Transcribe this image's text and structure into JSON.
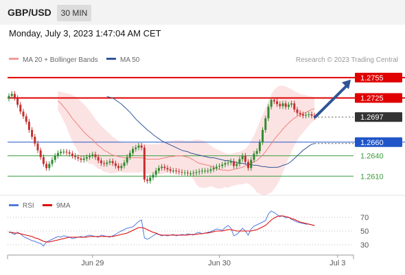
{
  "header": {
    "symbol": "GBP/USD",
    "timeframe": "30 MIN",
    "datetime": "Monday, July 3, 2023 1:47:04 AM CET"
  },
  "colors": {
    "bollinger": "#f07f7f",
    "ma50": "#2f5596",
    "resistance": "#e00000",
    "support_blue": "#1f55c8",
    "support_green": "#3a9a3a",
    "candle_up": "#2f8a2f",
    "candle_down": "#c53030",
    "rsi": "#4f7be0",
    "rsi_ma": "#e00000"
  },
  "chart_data": [
    {
      "type": "line",
      "title": "",
      "legend": [
        {
          "name": "MA 20 + Bollinger Bands"
        },
        {
          "name": "MA 50"
        }
      ],
      "copyright": "Research © 2023 Trading Central",
      "ylim": [
        1.2586,
        1.2772
      ],
      "x_ticks": [
        {
          "label": "Jun 29",
          "index": 29
        },
        {
          "label": "Jun 30",
          "index": 73
        },
        {
          "label": "Jul 3",
          "index": 114
        }
      ],
      "levels": [
        {
          "value": 1.2755,
          "label": "1.2755",
          "style": "resistance"
        },
        {
          "value": 1.2725,
          "label": "1.2725",
          "style": "resistance"
        },
        {
          "value": 1.2697,
          "label": "1.2697",
          "style": "current"
        },
        {
          "value": 1.266,
          "label": "1.2660",
          "style": "support_blue"
        },
        {
          "value": 1.264,
          "label": "1.2640",
          "style": "support_green"
        },
        {
          "value": 1.261,
          "label": "1.2610",
          "style": "support_green"
        }
      ],
      "close": [
        1.2728,
        1.2731,
        1.2725,
        1.2715,
        1.2705,
        1.2698,
        1.269,
        1.2678,
        1.2668,
        1.2658,
        1.2648,
        1.2638,
        1.2628,
        1.2622,
        1.2628,
        1.2634,
        1.264,
        1.2644,
        1.2646,
        1.2646,
        1.2645,
        1.2643,
        1.264,
        1.2638,
        1.2636,
        1.2634,
        1.2636,
        1.2638,
        1.264,
        1.2642,
        1.2638,
        1.2633,
        1.2629,
        1.2628,
        1.263,
        1.2632,
        1.2629,
        1.2625,
        1.2622,
        1.2625,
        1.263,
        1.2638,
        1.2644,
        1.265,
        1.2652,
        1.2655,
        1.2652,
        1.2605,
        1.2603,
        1.2608,
        1.2612,
        1.2618,
        1.2622,
        1.2624,
        1.2622,
        1.262,
        1.2618,
        1.2618,
        1.2617,
        1.2616,
        1.2615,
        1.2615,
        1.2614,
        1.2614,
        1.2615,
        1.2616,
        1.2617,
        1.2618,
        1.2618,
        1.2618,
        1.262,
        1.2622,
        1.2624,
        1.2625,
        1.2627,
        1.2629,
        1.263,
        1.2632,
        1.2625,
        1.2628,
        1.2635,
        1.264,
        1.2631,
        1.2622,
        1.2634,
        1.2643,
        1.2647,
        1.266,
        1.2678,
        1.2695,
        1.2712,
        1.2722,
        1.272,
        1.2716,
        1.2713,
        1.2717,
        1.2712,
        1.2715,
        1.2717,
        1.2708,
        1.2703,
        1.2701,
        1.2699,
        1.27,
        1.2701,
        1.2699,
        1.2697
      ],
      "ma20": [
        1.2721,
        1.2717,
        1.2712,
        1.2707,
        1.2701,
        1.2695,
        1.269,
        1.2685,
        1.268,
        1.2675,
        1.2671,
        1.2667,
        1.2664,
        1.2659,
        1.2655,
        1.2652,
        1.2648,
        1.2646,
        1.2643,
        1.2641,
        1.264,
        1.2639,
        1.2638,
        1.2637,
        1.2637,
        1.2637,
        1.2637,
        1.2637,
        1.2637,
        1.2637,
        1.2636,
        1.2635,
        1.2635,
        1.2635,
        1.2635,
        1.2635,
        1.2636,
        1.2637,
        1.2638,
        1.2639,
        1.2639,
        1.264,
        1.264,
        1.264,
        1.2639,
        1.2638,
        1.2636,
        1.2634,
        1.2631,
        1.2629,
        1.2628,
        1.2627,
        1.2626,
        1.2625,
        1.2623,
        1.2621,
        1.262,
        1.2619,
        1.2619,
        1.2618,
        1.2619,
        1.262,
        1.2621,
        1.2622,
        1.2623,
        1.2625,
        1.2627,
        1.2629,
        1.2631,
        1.2633,
        1.2637,
        1.2641,
        1.2646,
        1.2652,
        1.2658,
        1.2664,
        1.2669,
        1.2674,
        1.2679,
        1.2684,
        1.2688,
        1.2692,
        1.2695,
        1.2698,
        1.27,
        1.2702,
        1.2704,
        1.2706,
        1.2708,
        1.2709
      ],
      "bb_upper": [
        1.2735,
        1.2734,
        1.2733,
        1.2732,
        1.2731,
        1.2729,
        1.2727,
        1.2724,
        1.272,
        1.2716,
        1.2711,
        1.2706,
        1.27,
        1.2694,
        1.2689,
        1.2684,
        1.268,
        1.2676,
        1.2672,
        1.2668,
        1.2665,
        1.2662,
        1.266,
        1.2659,
        1.2659,
        1.2659,
        1.2659,
        1.2659,
        1.2659,
        1.2658,
        1.2658,
        1.2657,
        1.2657,
        1.2657,
        1.2657,
        1.2657,
        1.2659,
        1.266,
        1.2661,
        1.2662,
        1.2662,
        1.2663,
        1.2663,
        1.2663,
        1.2662,
        1.2662,
        1.2662,
        1.2663,
        1.2664,
        1.2664,
        1.2663,
        1.2661,
        1.2658,
        1.2655,
        1.2652,
        1.265,
        1.2648,
        1.2646,
        1.2644,
        1.2643,
        1.2643,
        1.2644,
        1.2645,
        1.2646,
        1.2648,
        1.265,
        1.2655,
        1.2662,
        1.267,
        1.268,
        1.269,
        1.27,
        1.271,
        1.272,
        1.273,
        1.2737,
        1.2741,
        1.2743,
        1.2743,
        1.2742,
        1.274,
        1.2738,
        1.2735,
        1.2733,
        1.2731,
        1.273,
        1.2729,
        1.2728,
        1.2727,
        1.2726
      ],
      "bb_lower": [
        1.2707,
        1.27,
        1.2691,
        1.2682,
        1.2671,
        1.2661,
        1.2653,
        1.2646,
        1.264,
        1.2634,
        1.2631,
        1.2628,
        1.2628,
        1.2624,
        1.2621,
        1.262,
        1.2616,
        1.2616,
        1.2614,
        1.2614,
        1.2615,
        1.2616,
        1.2616,
        1.2615,
        1.2615,
        1.2615,
        1.2615,
        1.2615,
        1.2615,
        1.2616,
        1.2614,
        1.2613,
        1.2613,
        1.2613,
        1.2613,
        1.2613,
        1.2613,
        1.2614,
        1.2615,
        1.2616,
        1.2616,
        1.2617,
        1.2617,
        1.2617,
        1.2616,
        1.2614,
        1.261,
        1.2605,
        1.2598,
        1.2594,
        1.2593,
        1.2593,
        1.2594,
        1.2595,
        1.2594,
        1.2592,
        1.2592,
        1.2592,
        1.2594,
        1.2593,
        1.2595,
        1.2596,
        1.2597,
        1.2598,
        1.2598,
        1.26,
        1.2599,
        1.2596,
        1.2592,
        1.2586,
        1.2584,
        1.2582,
        1.2582,
        1.2584,
        1.2586,
        1.2591,
        1.2597,
        1.2605,
        1.2615,
        1.2626,
        1.2636,
        1.2646,
        1.2655,
        1.2663,
        1.2669,
        1.2674,
        1.2679,
        1.2684,
        1.2689,
        1.2692
      ],
      "ma50": [
        1.2727,
        1.2726,
        1.2725,
        1.2722,
        1.2719,
        1.2716,
        1.2712,
        1.2708,
        1.2704,
        1.2699,
        1.2694,
        1.269,
        1.2686,
        1.2682,
        1.2678,
        1.2675,
        1.2671,
        1.2668,
        1.2665,
        1.2662,
        1.266,
        1.2658,
        1.2656,
        1.2654,
        1.2652,
        1.265,
        1.2648,
        1.2647,
        1.2646,
        1.2644,
        1.2643,
        1.2642,
        1.2641,
        1.264,
        1.2639,
        1.2638,
        1.2637,
        1.2637,
        1.2636,
        1.2635,
        1.2634,
        1.2633,
        1.2633,
        1.2632,
        1.2631,
        1.263,
        1.2629,
        1.2629,
        1.2628,
        1.2627,
        1.2627,
        1.2626,
        1.2626,
        1.2625,
        1.2624,
        1.2624,
        1.2623,
        1.2623,
        1.2623,
        1.2623,
        1.2624,
        1.2626,
        1.2627,
        1.2629,
        1.2632,
        1.2636,
        1.264,
        1.2644,
        1.2648,
        1.2651,
        1.2654,
        1.2657,
        1.2658
      ]
    },
    {
      "type": "line",
      "title": "",
      "legend": [
        {
          "name": "RSI"
        },
        {
          "name": "9MA"
        }
      ],
      "ylim": [
        20,
        82
      ],
      "y_ticks": [
        70,
        50,
        30
      ],
      "rsi": [
        49,
        47,
        45,
        48,
        46,
        42,
        40,
        38,
        36,
        35,
        33,
        32,
        28,
        34,
        36,
        38,
        40,
        42,
        41,
        43,
        42,
        41,
        39,
        40,
        41,
        42,
        41,
        43,
        44,
        43,
        42,
        41,
        44,
        43,
        42,
        41,
        43,
        45,
        48,
        50,
        52,
        54,
        55,
        56,
        60,
        64,
        66,
        40,
        38,
        40,
        43,
        46,
        45,
        43,
        44,
        43,
        44,
        45,
        43,
        44,
        45,
        44,
        46,
        45,
        44,
        47,
        48,
        46,
        47,
        48,
        49,
        51,
        53,
        52,
        51,
        55,
        58,
        54,
        43,
        45,
        49,
        54,
        50,
        44,
        53,
        57,
        59,
        61,
        63,
        65,
        75,
        79,
        77,
        74,
        71,
        72,
        69,
        70,
        67,
        65,
        63,
        62,
        61,
        60,
        60,
        59,
        58
      ],
      "rsi_ma": [
        48,
        48,
        47,
        47,
        46,
        45,
        44,
        43,
        42,
        40,
        39,
        37,
        35,
        34,
        34,
        35,
        36,
        37,
        38,
        39,
        40,
        41,
        41,
        41,
        41,
        41,
        41,
        41,
        42,
        42,
        42,
        42,
        42,
        42,
        42,
        42,
        42,
        43,
        44,
        45,
        46,
        47,
        49,
        51,
        53,
        55,
        55,
        54,
        52,
        50,
        48,
        47,
        45,
        44,
        44,
        44,
        44,
        44,
        44,
        44,
        44,
        44,
        44,
        45,
        45,
        45,
        46,
        46,
        47,
        47,
        48,
        49,
        50,
        50,
        50,
        51,
        52,
        52,
        51,
        50,
        50,
        50,
        50,
        50,
        50,
        51,
        52,
        54,
        56,
        58,
        62,
        66,
        69,
        71,
        72,
        72,
        71,
        70,
        68,
        67,
        65,
        63,
        62,
        61,
        60,
        59,
        58
      ]
    }
  ]
}
